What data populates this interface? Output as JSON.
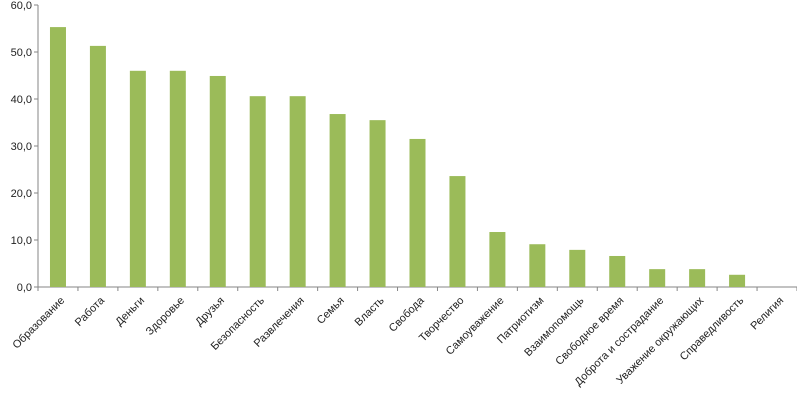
{
  "chart_data": {
    "type": "bar",
    "categories": [
      "Образование",
      "Работа",
      "Деньги",
      "Здоровье",
      "Друзья",
      "Безопасность",
      "Развлечения",
      "Семья",
      "Власть",
      "Свобода",
      "Творчество",
      "Самоуважение",
      "Патриотизм",
      "Взаимопомощь",
      "Свободное время",
      "Доброта и сострадание",
      "Уважение окружающих",
      "Справедливость",
      "Религия"
    ],
    "values": [
      55.3,
      51.3,
      46.0,
      46.0,
      44.9,
      40.6,
      40.6,
      36.8,
      35.5,
      31.5,
      23.6,
      11.7,
      9.1,
      7.9,
      6.6,
      3.8,
      3.8,
      2.6,
      0
    ],
    "color": "#9bbb59",
    "ylim": [
      0,
      60
    ],
    "yticks": [
      {
        "value": 0,
        "label": "0,0"
      },
      {
        "value": 10,
        "label": "10,0"
      },
      {
        "value": 20,
        "label": "20,0"
      },
      {
        "value": 30,
        "label": "30,0"
      },
      {
        "value": 40,
        "label": "40,0"
      },
      {
        "value": 50,
        "label": "50,0"
      },
      {
        "value": 60,
        "label": "60,0"
      }
    ],
    "grid": false
  }
}
